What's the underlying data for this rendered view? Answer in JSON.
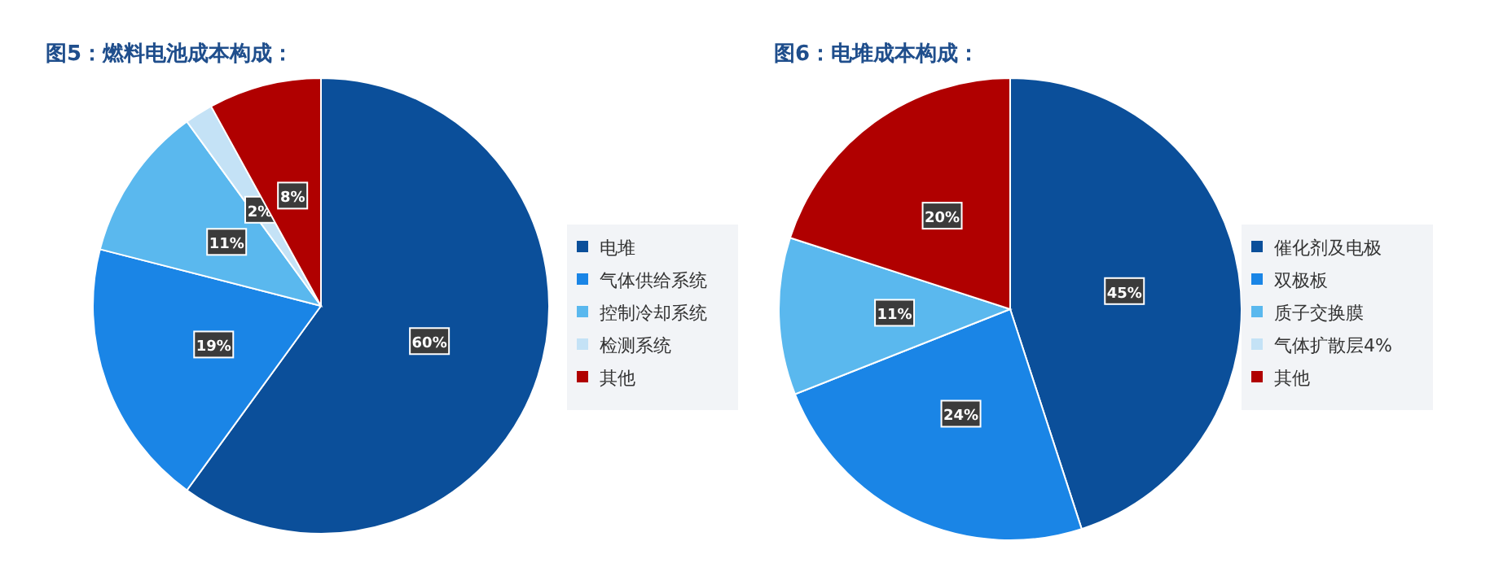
{
  "chart_data": [
    {
      "type": "pie",
      "title": "图5：燃料电池成本构成：",
      "categories": [
        "电堆",
        "气体供给系统",
        "控制冷却系统",
        "检测系统",
        "其他"
      ],
      "values": [
        60,
        19,
        11,
        2,
        8
      ],
      "colors": [
        "#0b4f9a",
        "#1a85e6",
        "#5ab8ee",
        "#c4e2f6",
        "#b00000"
      ],
      "value_labels": [
        "60%",
        "19%",
        "11%",
        "2%",
        "8%"
      ],
      "legend": "right"
    },
    {
      "type": "pie",
      "title": "图6：电堆成本构成：",
      "categories": [
        "催化剂及电极",
        "双极板",
        "质子交换膜",
        "气体扩散层4%",
        "其他"
      ],
      "values": [
        45,
        24,
        11,
        null,
        20
      ],
      "colors": [
        "#0b4f9a",
        "#1a85e6",
        "#5ab8ee",
        "#c4e2f6",
        "#b00000"
      ],
      "value_labels": [
        "45%",
        "24%",
        "11%",
        null,
        "20%"
      ],
      "legend": "right"
    }
  ]
}
